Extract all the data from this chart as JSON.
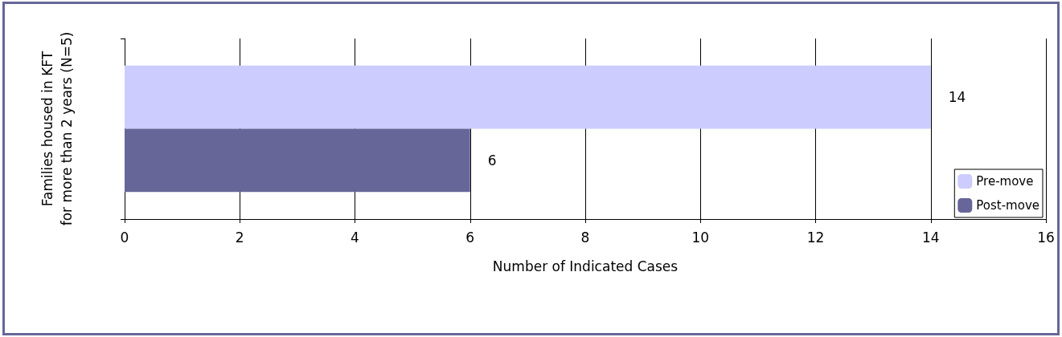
{
  "chart_data": {
    "type": "bar",
    "orientation": "horizontal",
    "categories": [
      null
    ],
    "series": [
      {
        "name": "Pre-move",
        "color": "#ccccff",
        "values": [
          14
        ]
      },
      {
        "name": "Post-move",
        "color": "#666699",
        "values": [
          6
        ]
      }
    ],
    "xlabel": "Number of Indicated Cases",
    "ylabel": "Families housed in KFT for more than 2 years (N=5)",
    "xlim": [
      0,
      16
    ],
    "xticks": [
      0,
      2,
      4,
      6,
      8,
      10,
      12,
      14,
      16
    ],
    "grid": "x",
    "legend": "bottom right",
    "data_labels": true
  }
}
